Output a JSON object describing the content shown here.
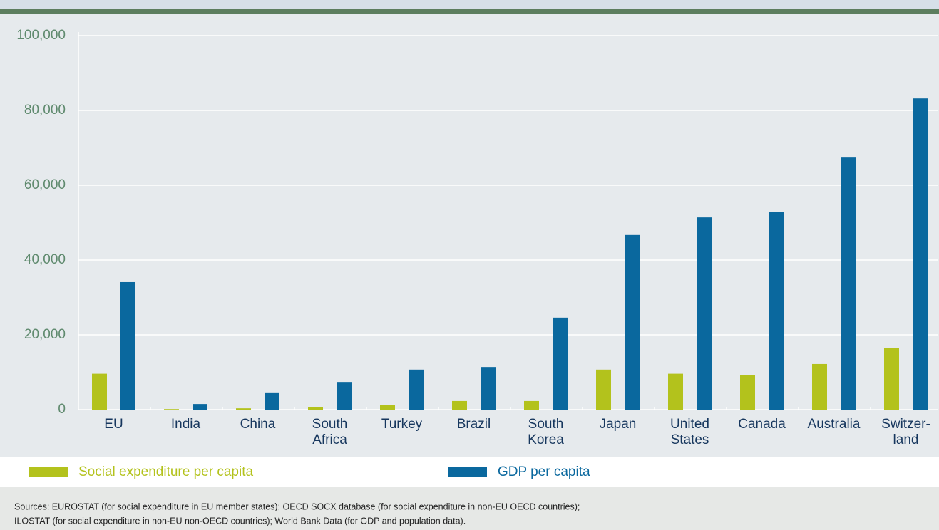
{
  "chart_data": {
    "type": "bar",
    "categories": [
      "EU",
      "India",
      "China",
      "South\nAfrica",
      "Turkey",
      "Brazil",
      "South\nKorea",
      "Japan",
      "United\nStates",
      "Canada",
      "Australia",
      "Switzer-\nland"
    ],
    "series": [
      {
        "name": "Social expenditure per capita",
        "color": "#b3c21c",
        "values": [
          9600,
          150,
          350,
          650,
          1200,
          2300,
          2300,
          10700,
          9600,
          9200,
          12200,
          16500
        ]
      },
      {
        "name": "GDP per capita",
        "color": "#0a689e",
        "values": [
          34100,
          1500,
          4600,
          7400,
          10700,
          11400,
          24600,
          46700,
          51400,
          52800,
          67400,
          83200
        ]
      }
    ],
    "ylim": [
      0,
      100000
    ],
    "yticks": [
      0,
      {
        "value": 20000,
        "label": "20,000"
      },
      {
        "value": 40000,
        "label": "40,000"
      },
      {
        "value": 60000,
        "label": "60,000"
      },
      {
        "value": 80000,
        "label": "80,000"
      },
      {
        "value": 100000,
        "label": "100,000"
      }
    ],
    "grid": true,
    "sources": [
      "Sources: EUROSTAT (for social expenditure in EU member states); OECD SOCX database (for social expenditure in non-EU OECD countries);",
      "ILOSTAT (for social expenditure in non-EU non-OECD countries); World Bank Data (for GDP and population data)."
    ]
  }
}
